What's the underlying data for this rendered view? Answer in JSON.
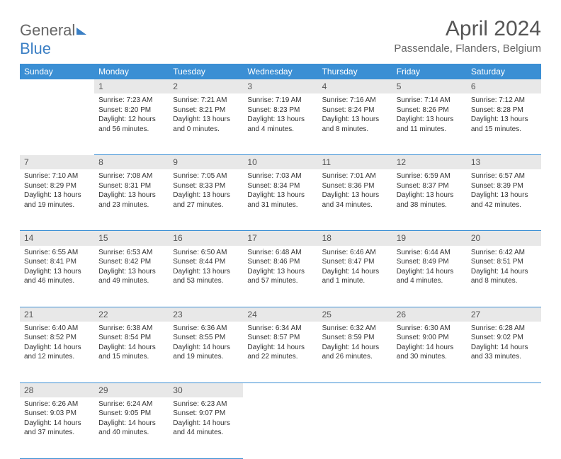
{
  "brand": {
    "part1": "General",
    "part2": "Blue"
  },
  "title": "April 2024",
  "location": "Passendale, Flanders, Belgium",
  "weekdays": [
    "Sunday",
    "Monday",
    "Tuesday",
    "Wednesday",
    "Thursday",
    "Friday",
    "Saturday"
  ],
  "colors": {
    "header_bg": "#3b8fd4",
    "header_fg": "#ffffff",
    "daynum_bg": "#e8e8e8"
  },
  "weeks": [
    {
      "nums": [
        "",
        "1",
        "2",
        "3",
        "4",
        "5",
        "6"
      ],
      "cells": [
        null,
        {
          "sr": "Sunrise: 7:23 AM",
          "ss": "Sunset: 8:20 PM",
          "d1": "Daylight: 12 hours",
          "d2": "and 56 minutes."
        },
        {
          "sr": "Sunrise: 7:21 AM",
          "ss": "Sunset: 8:21 PM",
          "d1": "Daylight: 13 hours",
          "d2": "and 0 minutes."
        },
        {
          "sr": "Sunrise: 7:19 AM",
          "ss": "Sunset: 8:23 PM",
          "d1": "Daylight: 13 hours",
          "d2": "and 4 minutes."
        },
        {
          "sr": "Sunrise: 7:16 AM",
          "ss": "Sunset: 8:24 PM",
          "d1": "Daylight: 13 hours",
          "d2": "and 8 minutes."
        },
        {
          "sr": "Sunrise: 7:14 AM",
          "ss": "Sunset: 8:26 PM",
          "d1": "Daylight: 13 hours",
          "d2": "and 11 minutes."
        },
        {
          "sr": "Sunrise: 7:12 AM",
          "ss": "Sunset: 8:28 PM",
          "d1": "Daylight: 13 hours",
          "d2": "and 15 minutes."
        }
      ]
    },
    {
      "nums": [
        "7",
        "8",
        "9",
        "10",
        "11",
        "12",
        "13"
      ],
      "cells": [
        {
          "sr": "Sunrise: 7:10 AM",
          "ss": "Sunset: 8:29 PM",
          "d1": "Daylight: 13 hours",
          "d2": "and 19 minutes."
        },
        {
          "sr": "Sunrise: 7:08 AM",
          "ss": "Sunset: 8:31 PM",
          "d1": "Daylight: 13 hours",
          "d2": "and 23 minutes."
        },
        {
          "sr": "Sunrise: 7:05 AM",
          "ss": "Sunset: 8:33 PM",
          "d1": "Daylight: 13 hours",
          "d2": "and 27 minutes."
        },
        {
          "sr": "Sunrise: 7:03 AM",
          "ss": "Sunset: 8:34 PM",
          "d1": "Daylight: 13 hours",
          "d2": "and 31 minutes."
        },
        {
          "sr": "Sunrise: 7:01 AM",
          "ss": "Sunset: 8:36 PM",
          "d1": "Daylight: 13 hours",
          "d2": "and 34 minutes."
        },
        {
          "sr": "Sunrise: 6:59 AM",
          "ss": "Sunset: 8:37 PM",
          "d1": "Daylight: 13 hours",
          "d2": "and 38 minutes."
        },
        {
          "sr": "Sunrise: 6:57 AM",
          "ss": "Sunset: 8:39 PM",
          "d1": "Daylight: 13 hours",
          "d2": "and 42 minutes."
        }
      ]
    },
    {
      "nums": [
        "14",
        "15",
        "16",
        "17",
        "18",
        "19",
        "20"
      ],
      "cells": [
        {
          "sr": "Sunrise: 6:55 AM",
          "ss": "Sunset: 8:41 PM",
          "d1": "Daylight: 13 hours",
          "d2": "and 46 minutes."
        },
        {
          "sr": "Sunrise: 6:53 AM",
          "ss": "Sunset: 8:42 PM",
          "d1": "Daylight: 13 hours",
          "d2": "and 49 minutes."
        },
        {
          "sr": "Sunrise: 6:50 AM",
          "ss": "Sunset: 8:44 PM",
          "d1": "Daylight: 13 hours",
          "d2": "and 53 minutes."
        },
        {
          "sr": "Sunrise: 6:48 AM",
          "ss": "Sunset: 8:46 PM",
          "d1": "Daylight: 13 hours",
          "d2": "and 57 minutes."
        },
        {
          "sr": "Sunrise: 6:46 AM",
          "ss": "Sunset: 8:47 PM",
          "d1": "Daylight: 14 hours",
          "d2": "and 1 minute."
        },
        {
          "sr": "Sunrise: 6:44 AM",
          "ss": "Sunset: 8:49 PM",
          "d1": "Daylight: 14 hours",
          "d2": "and 4 minutes."
        },
        {
          "sr": "Sunrise: 6:42 AM",
          "ss": "Sunset: 8:51 PM",
          "d1": "Daylight: 14 hours",
          "d2": "and 8 minutes."
        }
      ]
    },
    {
      "nums": [
        "21",
        "22",
        "23",
        "24",
        "25",
        "26",
        "27"
      ],
      "cells": [
        {
          "sr": "Sunrise: 6:40 AM",
          "ss": "Sunset: 8:52 PM",
          "d1": "Daylight: 14 hours",
          "d2": "and 12 minutes."
        },
        {
          "sr": "Sunrise: 6:38 AM",
          "ss": "Sunset: 8:54 PM",
          "d1": "Daylight: 14 hours",
          "d2": "and 15 minutes."
        },
        {
          "sr": "Sunrise: 6:36 AM",
          "ss": "Sunset: 8:55 PM",
          "d1": "Daylight: 14 hours",
          "d2": "and 19 minutes."
        },
        {
          "sr": "Sunrise: 6:34 AM",
          "ss": "Sunset: 8:57 PM",
          "d1": "Daylight: 14 hours",
          "d2": "and 22 minutes."
        },
        {
          "sr": "Sunrise: 6:32 AM",
          "ss": "Sunset: 8:59 PM",
          "d1": "Daylight: 14 hours",
          "d2": "and 26 minutes."
        },
        {
          "sr": "Sunrise: 6:30 AM",
          "ss": "Sunset: 9:00 PM",
          "d1": "Daylight: 14 hours",
          "d2": "and 30 minutes."
        },
        {
          "sr": "Sunrise: 6:28 AM",
          "ss": "Sunset: 9:02 PM",
          "d1": "Daylight: 14 hours",
          "d2": "and 33 minutes."
        }
      ]
    },
    {
      "nums": [
        "28",
        "29",
        "30",
        "",
        "",
        "",
        ""
      ],
      "cells": [
        {
          "sr": "Sunrise: 6:26 AM",
          "ss": "Sunset: 9:03 PM",
          "d1": "Daylight: 14 hours",
          "d2": "and 37 minutes."
        },
        {
          "sr": "Sunrise: 6:24 AM",
          "ss": "Sunset: 9:05 PM",
          "d1": "Daylight: 14 hours",
          "d2": "and 40 minutes."
        },
        {
          "sr": "Sunrise: 6:23 AM",
          "ss": "Sunset: 9:07 PM",
          "d1": "Daylight: 14 hours",
          "d2": "and 44 minutes."
        },
        null,
        null,
        null,
        null
      ]
    }
  ]
}
